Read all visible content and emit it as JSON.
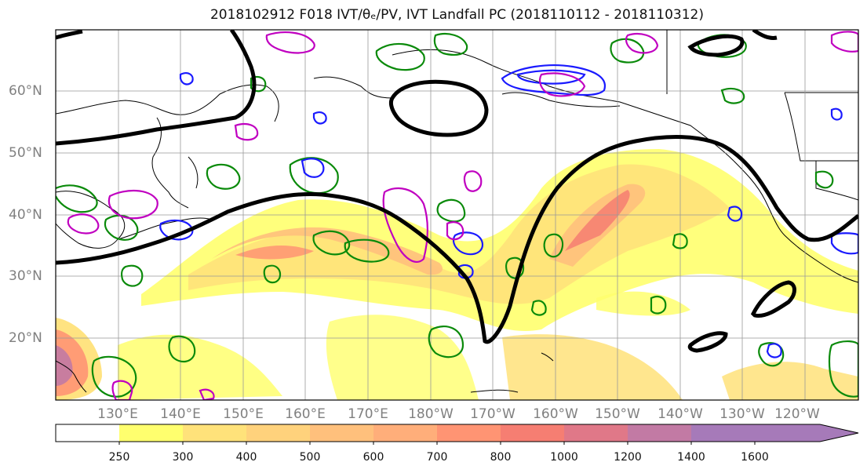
{
  "title": "2018102912 F018 IVT/θₑ/PV, IVT Landfall PC (2018110112 - 2018110312)",
  "lat_labels": [
    "60°N",
    "50°N",
    "40°N",
    "30°N",
    "20°N"
  ],
  "lon_labels": [
    "130°E",
    "140°E",
    "150°E",
    "160°E",
    "170°E",
    "180°W",
    "170°W",
    "160°W",
    "150°W",
    "140°W",
    "130°W",
    "120°W"
  ],
  "colorbar": {
    "ticks": [
      "250",
      "300",
      "400",
      "500",
      "600",
      "700",
      "800",
      "1000",
      "1200",
      "1400",
      "1600"
    ],
    "colors": [
      "#ffffff",
      "#ffff6e",
      "#ffe27a",
      "#ffd27c",
      "#ffc07c",
      "#ffae7a",
      "#ff9473",
      "#f67e72",
      "#e07888",
      "#c27aa4",
      "#a67ab9",
      "#a67ab9"
    ]
  },
  "icons": [
    "coastline-map",
    "colorbar-arrow"
  ]
}
